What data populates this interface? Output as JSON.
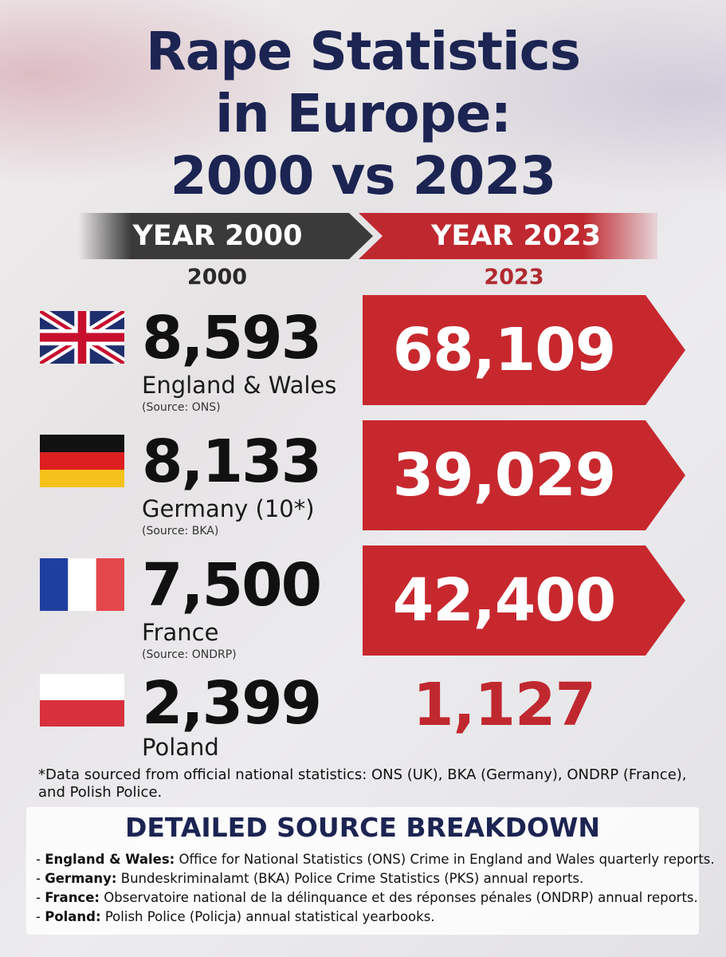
{
  "title": {
    "line1": "Rape Statistics",
    "line2": "in Europe:",
    "line3": "2000 vs 2023"
  },
  "headers": {
    "left_banner": "YEAR 2000",
    "right_banner": "YEAR 2023",
    "left_sub": "2000",
    "right_sub": "2023"
  },
  "rows": [
    {
      "country": "England & Wales",
      "source": "(Source: ONS)",
      "v2000": "8,593",
      "v2023": "68,109",
      "flag": "uk-flag"
    },
    {
      "country": "Germany (10*)",
      "source": "(Source: BKA)",
      "v2000": "8,133",
      "v2023": "39,029",
      "flag": "germany-flag"
    },
    {
      "country": "France",
      "source": "(Source: ONDRP)",
      "v2000": "7,500",
      "v2023": "42,400",
      "flag": "france-flag"
    },
    {
      "country": "Poland",
      "source": "",
      "v2000": "2,399",
      "v2023": "1,127",
      "flag": "poland-flag"
    }
  ],
  "footnote": "*Data sourced from official national statistics: ONS (UK), BKA (Germany), ONDRP (France), and Polish Police.",
  "breakdown": {
    "title": "DETAILED SOURCE BREAKDOWN",
    "items": [
      {
        "prefix": "- ",
        "label": "England & Wales:",
        "text": " Office for National Statistics (ONS) Crime in England and Wales quarterly reports."
      },
      {
        "prefix": "- ",
        "label": "Germany:",
        "text": " Bundeskriminalamt (BKA) Police Crime Statistics (PKS) annual reports."
      },
      {
        "prefix": "- ",
        "label": "France:",
        "text": " Observatoire national de la délinquance et des réponses pénales (ONDRP) annual reports."
      },
      {
        "prefix": "- ",
        "label": "Poland:",
        "text": " Polish Police (Policja) annual statistical yearbooks."
      }
    ]
  },
  "colors": {
    "title": "#1c2452",
    "accent_red": "#c7282e",
    "dark_banner": "#3a3a3a"
  },
  "chart_data": {
    "type": "table",
    "columns": [
      "2000",
      "2023"
    ],
    "categories": [
      "England & Wales",
      "Germany (10*)",
      "France",
      "Poland"
    ],
    "series": [
      {
        "name": "2000",
        "values": [
          8593,
          8133,
          7500,
          2399
        ]
      },
      {
        "name": "2023",
        "values": [
          68109,
          39029,
          42400,
          1127
        ]
      }
    ],
    "title": "Rape Statistics in Europe: 2000 vs 2023"
  }
}
